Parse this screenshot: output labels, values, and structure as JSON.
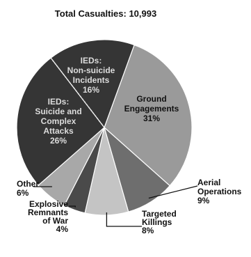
{
  "chart_data": {
    "type": "pie",
    "title": "Total Casualties: 10,993",
    "slices": [
      {
        "label": "Ground Engagements",
        "percent_text": "31%",
        "value": 31,
        "color": "#9a9a9a",
        "text_color": "#111111",
        "placement": "inside"
      },
      {
        "label": "Aerial Operations",
        "percent_text": "9%",
        "value": 9,
        "color": "#6e6e6e",
        "text_color": "#111111",
        "placement": "outside-right"
      },
      {
        "label": "Targeted Killings",
        "percent_text": "8%",
        "value": 8,
        "color": "#c4c4c4",
        "text_color": "#111111",
        "placement": "outside-bottom"
      },
      {
        "label": "Explosive Remnants of War",
        "percent_text": "4%",
        "value": 4,
        "color": "#4a4a4a",
        "text_color": "#111111",
        "placement": "outside-bottom-left"
      },
      {
        "label": "Other",
        "percent_text": "6%",
        "value": 6,
        "color": "#a8a8a8",
        "text_color": "#111111",
        "placement": "outside-left"
      },
      {
        "label": "IEDs: Suicide and Complex Attacks",
        "percent_text": "26%",
        "value": 26,
        "color": "#353535",
        "text_color": "#dcdcdc",
        "placement": "inside"
      },
      {
        "label": "IEDs: Non-suicide Incidents",
        "percent_text": "16%",
        "value": 16,
        "color": "#353535",
        "text_color": "#dcdcdc",
        "placement": "inside"
      }
    ],
    "legend": "none"
  }
}
